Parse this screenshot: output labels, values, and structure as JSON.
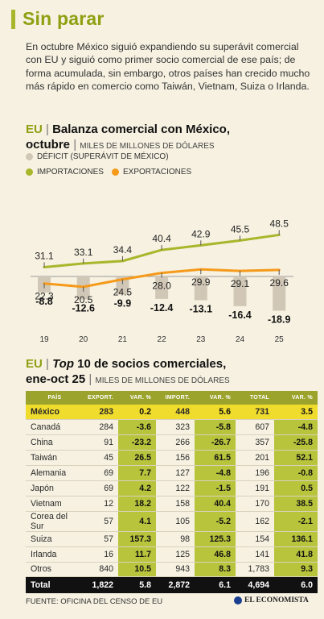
{
  "title": "Sin parar",
  "intro": "En octubre México siguió expandiendo su superávit comercial con EU y siguió como primer socio comercial de ese país; de forma acumulada, sin embargo, otros países han crecido mucho más rápido en comercio como Taiwán, Vietnam, Suiza o Irlanda.",
  "chart1_head": {
    "eu": "EU",
    "sep": " | ",
    "title_a": "Balanza comercial con México,",
    "title_b": "octubre",
    "unit": "MILES DE MILLONES DE DÓLARES"
  },
  "legend": {
    "deficit": "DÉFICIT (SUPERÁVIT DE MÉXICO)",
    "imports": "IMPORTACIONES",
    "exports": "EXPORTACIONES"
  },
  "colors": {
    "deficit": "#d1c7b6",
    "imports": "#a8b62c",
    "exports": "#f59a1a",
    "table_header": "#9ba32c",
    "highlight": "#f0dc2c",
    "var_cell": "#b8c43c"
  },
  "chart_data": {
    "type": "line",
    "x": [
      "19",
      "20",
      "21",
      "22",
      "23",
      "24",
      "25"
    ],
    "series": [
      {
        "name": "IMPORTACIONES",
        "values": [
          31.1,
          33.1,
          34.4,
          40.4,
          42.9,
          45.5,
          48.5
        ]
      },
      {
        "name": "EXPORTACIONES",
        "values": [
          22.3,
          20.5,
          24.5,
          28.0,
          29.9,
          29.1,
          29.6
        ]
      },
      {
        "name": "DÉFICIT (SUPERÁVIT DE MÉXICO)",
        "values": [
          -8.8,
          -12.6,
          -9.9,
          -12.4,
          -13.1,
          -16.4,
          -18.9
        ]
      }
    ],
    "value_labels": {
      "imports": [
        "31.1",
        "33.1",
        "34.4",
        "40.4",
        "42.9",
        "45.5",
        "48.5"
      ],
      "exports": [
        "22.3",
        "20.5",
        "24.5",
        "28.0",
        "29.9",
        "29.1",
        "29.6"
      ],
      "deficit": [
        "-8.8",
        "-12.6",
        "-9.9",
        "-12.4",
        "-13.1",
        "-16.4",
        "-18.9"
      ]
    }
  },
  "chart2_head": {
    "eu": "EU",
    "sep": " | ",
    "top": "Top",
    "title_a": " 10 de socios comerciales,",
    "title_b": "ene-oct 25",
    "unit": "MILES DE MILLONES DE DÓLARES"
  },
  "table": {
    "headers": [
      "PAÍS",
      "EXPORT.",
      "VAR. %",
      "IMPORT.",
      "VAR. %",
      "TOTAL",
      "VAR. %"
    ],
    "rows": [
      [
        "México",
        "283",
        "0.2",
        "448",
        "5.6",
        "731",
        "3.5"
      ],
      [
        "Canadá",
        "284",
        "-3.6",
        "323",
        "-5.8",
        "607",
        "-4.8"
      ],
      [
        "China",
        "91",
        "-23.2",
        "266",
        "-26.7",
        "357",
        "-25.8"
      ],
      [
        "Taiwán",
        "45",
        "26.5",
        "156",
        "61.5",
        "201",
        "52.1"
      ],
      [
        "Alemania",
        "69",
        "7.7",
        "127",
        "-4.8",
        "196",
        "-0.8"
      ],
      [
        "Japón",
        "69",
        "4.2",
        "122",
        "-1.5",
        "191",
        "0.5"
      ],
      [
        "Vietnam",
        "12",
        "18.2",
        "158",
        "40.4",
        "170",
        "38.5"
      ],
      [
        "Corea del Sur",
        "57",
        "4.1",
        "105",
        "-5.2",
        "162",
        "-2.1"
      ],
      [
        "Suiza",
        "57",
        "157.3",
        "98",
        "125.3",
        "154",
        "136.1"
      ],
      [
        "Irlanda",
        "16",
        "11.7",
        "125",
        "46.8",
        "141",
        "41.8"
      ],
      [
        "Otros",
        "840",
        "10.5",
        "943",
        "8.3",
        "1,783",
        "9.3"
      ]
    ],
    "total": [
      "Total",
      "1,822",
      "5.8",
      "2,872",
      "6.1",
      "4,694",
      "6.0"
    ]
  },
  "source": "FUENTE: OFICINA DEL CENSO DE EU",
  "logo": "EL ECONOMISTA"
}
